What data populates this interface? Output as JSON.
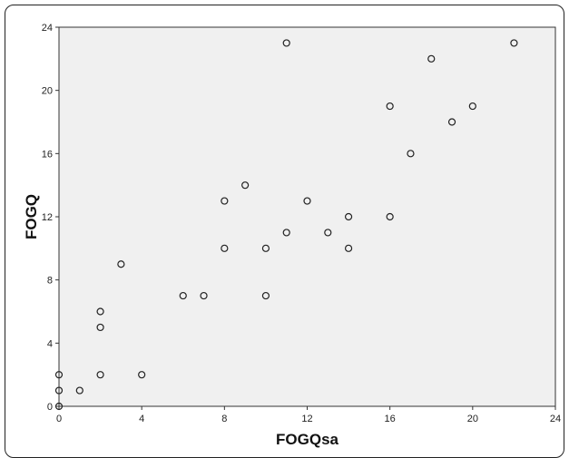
{
  "chart_data": {
    "type": "scatter",
    "xlabel": "FOGQsa",
    "ylabel": "FOGQ",
    "xlim": [
      0,
      24
    ],
    "ylim": [
      0,
      24
    ],
    "xticks": [
      0,
      4,
      8,
      12,
      16,
      20,
      24
    ],
    "yticks": [
      0,
      4,
      8,
      12,
      16,
      20,
      24
    ],
    "grid": false,
    "marker": "open-circle",
    "plot_background": "#f0f0f0",
    "point_color": "#222222",
    "points": [
      {
        "x": 0,
        "y": 0
      },
      {
        "x": 0,
        "y": 1
      },
      {
        "x": 0,
        "y": 2
      },
      {
        "x": 1,
        "y": 1
      },
      {
        "x": 2,
        "y": 2
      },
      {
        "x": 2,
        "y": 5
      },
      {
        "x": 2,
        "y": 6
      },
      {
        "x": 3,
        "y": 9
      },
      {
        "x": 4,
        "y": 2
      },
      {
        "x": 6,
        "y": 7
      },
      {
        "x": 7,
        "y": 7
      },
      {
        "x": 8,
        "y": 10
      },
      {
        "x": 8,
        "y": 13
      },
      {
        "x": 9,
        "y": 14
      },
      {
        "x": 10,
        "y": 7
      },
      {
        "x": 10,
        "y": 10
      },
      {
        "x": 11,
        "y": 11
      },
      {
        "x": 11,
        "y": 23
      },
      {
        "x": 12,
        "y": 13
      },
      {
        "x": 13,
        "y": 11
      },
      {
        "x": 14,
        "y": 10
      },
      {
        "x": 14,
        "y": 12
      },
      {
        "x": 16,
        "y": 12
      },
      {
        "x": 16,
        "y": 19
      },
      {
        "x": 17,
        "y": 16
      },
      {
        "x": 18,
        "y": 22
      },
      {
        "x": 19,
        "y": 18
      },
      {
        "x": 20,
        "y": 19
      },
      {
        "x": 22,
        "y": 23
      }
    ]
  }
}
